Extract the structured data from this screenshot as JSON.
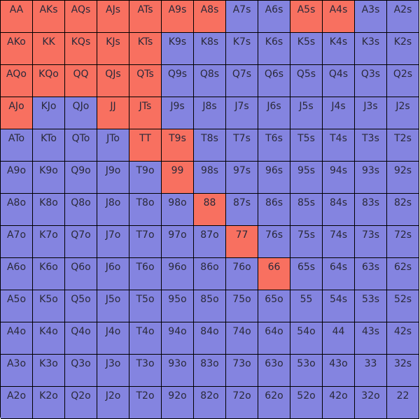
{
  "colors": {
    "selected": "#f87060",
    "unselected": "#8484e0"
  },
  "rows": [
    [
      {
        "label": "AA",
        "selected": true
      },
      {
        "label": "AKs",
        "selected": true
      },
      {
        "label": "AQs",
        "selected": true
      },
      {
        "label": "AJs",
        "selected": true
      },
      {
        "label": "ATs",
        "selected": true
      },
      {
        "label": "A9s",
        "selected": true
      },
      {
        "label": "A8s",
        "selected": true
      },
      {
        "label": "A7s",
        "selected": false
      },
      {
        "label": "A6s",
        "selected": false
      },
      {
        "label": "A5s",
        "selected": true
      },
      {
        "label": "A4s",
        "selected": true
      },
      {
        "label": "A3s",
        "selected": false
      },
      {
        "label": "A2s",
        "selected": false
      }
    ],
    [
      {
        "label": "AKo",
        "selected": true
      },
      {
        "label": "KK",
        "selected": true
      },
      {
        "label": "KQs",
        "selected": true
      },
      {
        "label": "KJs",
        "selected": true
      },
      {
        "label": "KTs",
        "selected": true
      },
      {
        "label": "K9s",
        "selected": false
      },
      {
        "label": "K8s",
        "selected": false
      },
      {
        "label": "K7s",
        "selected": false
      },
      {
        "label": "K6s",
        "selected": false
      },
      {
        "label": "K5s",
        "selected": false
      },
      {
        "label": "K4s",
        "selected": false
      },
      {
        "label": "K3s",
        "selected": false
      },
      {
        "label": "K2s",
        "selected": false
      }
    ],
    [
      {
        "label": "AQo",
        "selected": true
      },
      {
        "label": "KQo",
        "selected": true
      },
      {
        "label": "QQ",
        "selected": true
      },
      {
        "label": "QJs",
        "selected": true
      },
      {
        "label": "QTs",
        "selected": true
      },
      {
        "label": "Q9s",
        "selected": false
      },
      {
        "label": "Q8s",
        "selected": false
      },
      {
        "label": "Q7s",
        "selected": false
      },
      {
        "label": "Q6s",
        "selected": false
      },
      {
        "label": "Q5s",
        "selected": false
      },
      {
        "label": "Q4s",
        "selected": false
      },
      {
        "label": "Q3s",
        "selected": false
      },
      {
        "label": "Q2s",
        "selected": false
      }
    ],
    [
      {
        "label": "AJo",
        "selected": true
      },
      {
        "label": "KJo",
        "selected": false
      },
      {
        "label": "QJo",
        "selected": false
      },
      {
        "label": "JJ",
        "selected": true
      },
      {
        "label": "JTs",
        "selected": true
      },
      {
        "label": "J9s",
        "selected": false
      },
      {
        "label": "J8s",
        "selected": false
      },
      {
        "label": "J7s",
        "selected": false
      },
      {
        "label": "J6s",
        "selected": false
      },
      {
        "label": "J5s",
        "selected": false
      },
      {
        "label": "J4s",
        "selected": false
      },
      {
        "label": "J3s",
        "selected": false
      },
      {
        "label": "J2s",
        "selected": false
      }
    ],
    [
      {
        "label": "ATo",
        "selected": false
      },
      {
        "label": "KTo",
        "selected": false
      },
      {
        "label": "QTo",
        "selected": false
      },
      {
        "label": "JTo",
        "selected": false
      },
      {
        "label": "TT",
        "selected": true
      },
      {
        "label": "T9s",
        "selected": true
      },
      {
        "label": "T8s",
        "selected": false
      },
      {
        "label": "T7s",
        "selected": false
      },
      {
        "label": "T6s",
        "selected": false
      },
      {
        "label": "T5s",
        "selected": false
      },
      {
        "label": "T4s",
        "selected": false
      },
      {
        "label": "T3s",
        "selected": false
      },
      {
        "label": "T2s",
        "selected": false
      }
    ],
    [
      {
        "label": "A9o",
        "selected": false
      },
      {
        "label": "K9o",
        "selected": false
      },
      {
        "label": "Q9o",
        "selected": false
      },
      {
        "label": "J9o",
        "selected": false
      },
      {
        "label": "T9o",
        "selected": false
      },
      {
        "label": "99",
        "selected": true
      },
      {
        "label": "98s",
        "selected": false
      },
      {
        "label": "97s",
        "selected": false
      },
      {
        "label": "96s",
        "selected": false
      },
      {
        "label": "95s",
        "selected": false
      },
      {
        "label": "94s",
        "selected": false
      },
      {
        "label": "93s",
        "selected": false
      },
      {
        "label": "92s",
        "selected": false
      }
    ],
    [
      {
        "label": "A8o",
        "selected": false
      },
      {
        "label": "K8o",
        "selected": false
      },
      {
        "label": "Q8o",
        "selected": false
      },
      {
        "label": "J8o",
        "selected": false
      },
      {
        "label": "T8o",
        "selected": false
      },
      {
        "label": "98o",
        "selected": false
      },
      {
        "label": "88",
        "selected": true
      },
      {
        "label": "87s",
        "selected": false
      },
      {
        "label": "86s",
        "selected": false
      },
      {
        "label": "85s",
        "selected": false
      },
      {
        "label": "84s",
        "selected": false
      },
      {
        "label": "83s",
        "selected": false
      },
      {
        "label": "82s",
        "selected": false
      }
    ],
    [
      {
        "label": "A7o",
        "selected": false
      },
      {
        "label": "K7o",
        "selected": false
      },
      {
        "label": "Q7o",
        "selected": false
      },
      {
        "label": "J7o",
        "selected": false
      },
      {
        "label": "T7o",
        "selected": false
      },
      {
        "label": "97o",
        "selected": false
      },
      {
        "label": "87o",
        "selected": false
      },
      {
        "label": "77",
        "selected": true
      },
      {
        "label": "76s",
        "selected": false
      },
      {
        "label": "75s",
        "selected": false
      },
      {
        "label": "74s",
        "selected": false
      },
      {
        "label": "73s",
        "selected": false
      },
      {
        "label": "72s",
        "selected": false
      }
    ],
    [
      {
        "label": "A6o",
        "selected": false
      },
      {
        "label": "K6o",
        "selected": false
      },
      {
        "label": "Q6o",
        "selected": false
      },
      {
        "label": "J6o",
        "selected": false
      },
      {
        "label": "T6o",
        "selected": false
      },
      {
        "label": "96o",
        "selected": false
      },
      {
        "label": "86o",
        "selected": false
      },
      {
        "label": "76o",
        "selected": false
      },
      {
        "label": "66",
        "selected": true
      },
      {
        "label": "65s",
        "selected": false
      },
      {
        "label": "64s",
        "selected": false
      },
      {
        "label": "63s",
        "selected": false
      },
      {
        "label": "62s",
        "selected": false
      }
    ],
    [
      {
        "label": "A5o",
        "selected": false
      },
      {
        "label": "K5o",
        "selected": false
      },
      {
        "label": "Q5o",
        "selected": false
      },
      {
        "label": "J5o",
        "selected": false
      },
      {
        "label": "T5o",
        "selected": false
      },
      {
        "label": "95o",
        "selected": false
      },
      {
        "label": "85o",
        "selected": false
      },
      {
        "label": "75o",
        "selected": false
      },
      {
        "label": "65o",
        "selected": false
      },
      {
        "label": "55",
        "selected": false
      },
      {
        "label": "54s",
        "selected": false
      },
      {
        "label": "53s",
        "selected": false
      },
      {
        "label": "52s",
        "selected": false
      }
    ],
    [
      {
        "label": "A4o",
        "selected": false
      },
      {
        "label": "K4o",
        "selected": false
      },
      {
        "label": "Q4o",
        "selected": false
      },
      {
        "label": "J4o",
        "selected": false
      },
      {
        "label": "T4o",
        "selected": false
      },
      {
        "label": "94o",
        "selected": false
      },
      {
        "label": "84o",
        "selected": false
      },
      {
        "label": "74o",
        "selected": false
      },
      {
        "label": "64o",
        "selected": false
      },
      {
        "label": "54o",
        "selected": false
      },
      {
        "label": "44",
        "selected": false
      },
      {
        "label": "43s",
        "selected": false
      },
      {
        "label": "42s",
        "selected": false
      }
    ],
    [
      {
        "label": "A3o",
        "selected": false
      },
      {
        "label": "K3o",
        "selected": false
      },
      {
        "label": "Q3o",
        "selected": false
      },
      {
        "label": "J3o",
        "selected": false
      },
      {
        "label": "T3o",
        "selected": false
      },
      {
        "label": "93o",
        "selected": false
      },
      {
        "label": "83o",
        "selected": false
      },
      {
        "label": "73o",
        "selected": false
      },
      {
        "label": "63o",
        "selected": false
      },
      {
        "label": "53o",
        "selected": false
      },
      {
        "label": "43o",
        "selected": false
      },
      {
        "label": "33",
        "selected": false
      },
      {
        "label": "32s",
        "selected": false
      }
    ],
    [
      {
        "label": "A2o",
        "selected": false
      },
      {
        "label": "K2o",
        "selected": false
      },
      {
        "label": "Q2o",
        "selected": false
      },
      {
        "label": "J2o",
        "selected": false
      },
      {
        "label": "T2o",
        "selected": false
      },
      {
        "label": "92o",
        "selected": false
      },
      {
        "label": "82o",
        "selected": false
      },
      {
        "label": "72o",
        "selected": false
      },
      {
        "label": "62o",
        "selected": false
      },
      {
        "label": "52o",
        "selected": false
      },
      {
        "label": "42o",
        "selected": false
      },
      {
        "label": "32o",
        "selected": false
      },
      {
        "label": "22",
        "selected": false
      }
    ]
  ]
}
